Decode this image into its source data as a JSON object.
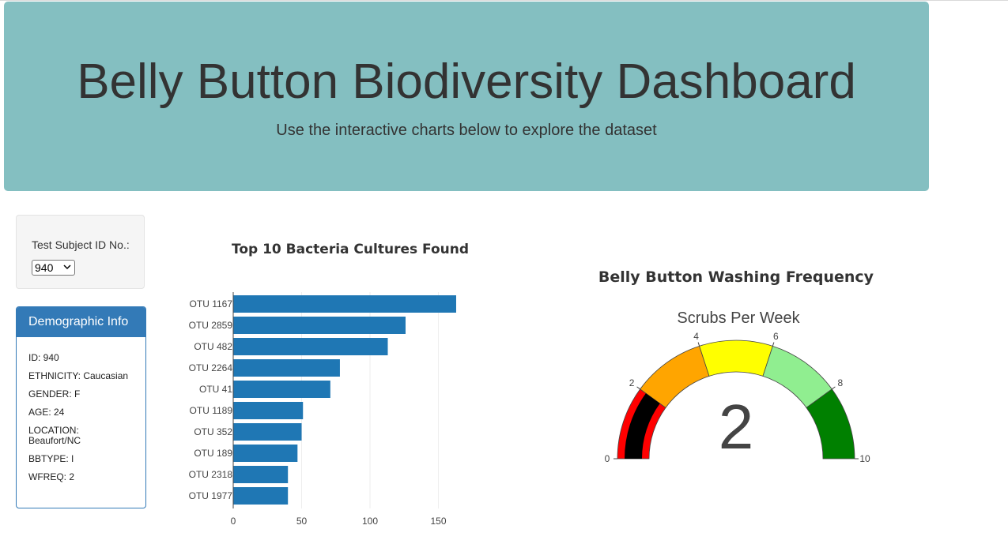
{
  "header": {
    "title": "Belly Button Biodiversity Dashboard",
    "subtitle": "Use the interactive charts below to explore the dataset"
  },
  "selector": {
    "label": "Test Subject ID No.:",
    "selected": "940"
  },
  "demographics": {
    "heading": "Demographic Info",
    "items": [
      "ID: 940",
      "ETHNICITY: Caucasian",
      "GENDER: F",
      "AGE: 24",
      "LOCATION: Beaufort/NC",
      "BBTYPE: I",
      "WFREQ: 2"
    ]
  },
  "colors": {
    "banner": "#84bfc1",
    "panel": "#337ab7",
    "bar": "#1f77b4"
  },
  "chart_data": [
    {
      "type": "bar",
      "orientation": "horizontal",
      "title": "Top 10 Bacteria Cultures Found",
      "categories": [
        "OTU 1167",
        "OTU 2859",
        "OTU 482",
        "OTU 2264",
        "OTU 41",
        "OTU 1189",
        "OTU 352",
        "OTU 189",
        "OTU 2318",
        "OTU 1977"
      ],
      "values": [
        163,
        126,
        113,
        78,
        71,
        51,
        50,
        47,
        40,
        40
      ],
      "xticks": [
        0,
        50,
        100,
        150
      ],
      "xlim": [
        0,
        171
      ]
    },
    {
      "type": "gauge",
      "title": "Belly Button Washing Frequency",
      "subtitle": "Scrubs Per Week",
      "value": 2,
      "range": [
        0,
        10
      ],
      "ticks": [
        0,
        2,
        4,
        6,
        8,
        10
      ],
      "steps": [
        {
          "range": [
            0,
            2
          ],
          "color": "#ff0000"
        },
        {
          "range": [
            2,
            4
          ],
          "color": "#ffa500"
        },
        {
          "range": [
            4,
            6
          ],
          "color": "#ffff00"
        },
        {
          "range": [
            6,
            8
          ],
          "color": "#90ee90"
        },
        {
          "range": [
            8,
            10
          ],
          "color": "#008000"
        }
      ],
      "bar_color": "#000000"
    }
  ]
}
